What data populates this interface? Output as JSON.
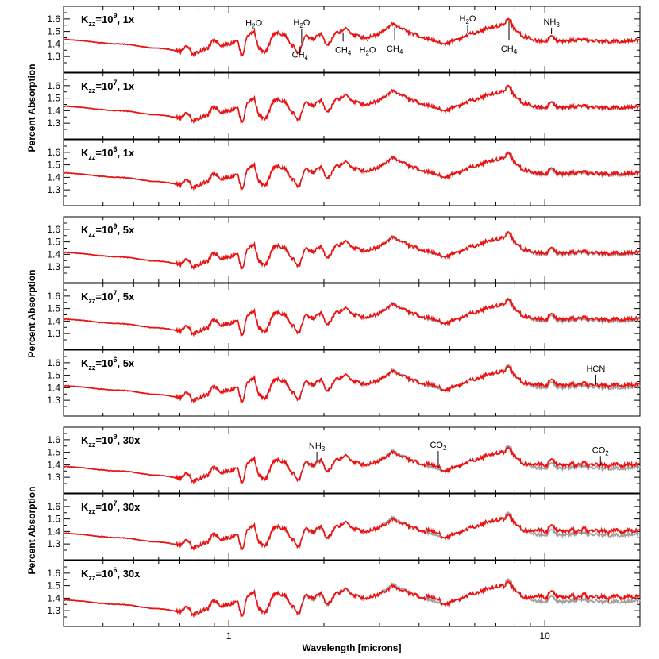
{
  "chart_data": {
    "type": "line",
    "figure": "Transmission spectra panels",
    "xlabel": "Wavelength [microns]",
    "ylabel": "Percent Absorption",
    "xscale": "log",
    "xlim": [
      0.3,
      20
    ],
    "ylim": [
      1.25,
      1.65
    ],
    "x_ticklabels": [
      {
        "value": 1,
        "label": "1"
      },
      {
        "value": 10,
        "label": "10"
      }
    ],
    "y_ticklabels": [
      {
        "value": 1.3,
        "label": "1.3"
      },
      {
        "value": 1.4,
        "label": "1.4"
      },
      {
        "value": 1.5,
        "label": "1.5"
      },
      {
        "value": 1.6,
        "label": "1.6"
      }
    ],
    "groups": [
      {
        "metallicity": "1x",
        "panels": [
          0,
          1,
          2
        ]
      },
      {
        "metallicity": "5x",
        "panels": [
          3,
          4,
          5
        ]
      },
      {
        "metallicity": "30x",
        "panels": [
          6,
          7,
          8
        ]
      }
    ],
    "colors": {
      "equilibrium": "#a0a0a0",
      "disequilibrium": "#ee1111",
      "axes": "#000000"
    },
    "panels": [
      {
        "kzz_exp": "9",
        "metallicity": "1x",
        "offset": 0.0,
        "diseq_amp": 0.0,
        "annotations": [
          {
            "text": "H",
            "sub": "2",
            "post": "O",
            "x": 1.2,
            "y": 1.545
          },
          {
            "text": "H",
            "sub": "2",
            "post": "O",
            "x": 1.7,
            "y": 1.55
          },
          {
            "text": "CH",
            "sub": "4",
            "post": "",
            "x": 1.68,
            "y": 1.29
          },
          {
            "text": "CH",
            "sub": "4",
            "post": "",
            "x": 2.3,
            "y": 1.33
          },
          {
            "text": "H",
            "sub": "2",
            "post": "O",
            "x": 2.75,
            "y": 1.33
          },
          {
            "text": "CH",
            "sub": "4",
            "post": "",
            "x": 3.35,
            "y": 1.34
          },
          {
            "text": "H",
            "sub": "2",
            "post": "O",
            "x": 5.7,
            "y": 1.58
          },
          {
            "text": "CH",
            "sub": "4",
            "post": "",
            "x": 7.7,
            "y": 1.34
          },
          {
            "text": "NH",
            "sub": "3",
            "post": "",
            "x": 10.5,
            "y": 1.555
          }
        ]
      },
      {
        "kzz_exp": "7",
        "metallicity": "1x",
        "offset": 0.0,
        "diseq_amp": 0.004,
        "annotations": []
      },
      {
        "kzz_exp": "6",
        "metallicity": "1x",
        "offset": 0.0,
        "diseq_amp": 0.008,
        "annotations": []
      },
      {
        "kzz_exp": "9",
        "metallicity": "5x",
        "offset": -0.02,
        "diseq_amp": 0.008,
        "annotations": []
      },
      {
        "kzz_exp": "7",
        "metallicity": "5x",
        "offset": -0.02,
        "diseq_amp": 0.012,
        "annotations": []
      },
      {
        "kzz_exp": "6",
        "metallicity": "5x",
        "offset": -0.02,
        "diseq_amp": 0.018,
        "annotations": [
          {
            "text": "HCN",
            "sub": "",
            "post": "",
            "x": 14.5,
            "y": 1.53
          }
        ]
      },
      {
        "kzz_exp": "9",
        "metallicity": "30x",
        "offset": -0.05,
        "diseq_amp": 0.025,
        "annotations": [
          {
            "text": "NH",
            "sub": "3",
            "post": "",
            "x": 1.9,
            "y": 1.53
          },
          {
            "text": "CO",
            "sub": "2",
            "post": "",
            "x": 4.6,
            "y": 1.535
          },
          {
            "text": "CO",
            "sub": "2",
            "post": "",
            "x": 15.0,
            "y": 1.495
          }
        ]
      },
      {
        "kzz_exp": "7",
        "metallicity": "30x",
        "offset": -0.05,
        "diseq_amp": 0.03,
        "annotations": []
      },
      {
        "kzz_exp": "6",
        "metallicity": "30x",
        "offset": -0.05,
        "diseq_amp": 0.035,
        "annotations": []
      }
    ],
    "spectrum_anchors": [
      [
        0.3,
        1.435
      ],
      [
        0.45,
        1.4
      ],
      [
        0.6,
        1.365
      ],
      [
        0.7,
        1.345
      ],
      [
        0.74,
        1.38
      ],
      [
        0.77,
        1.32
      ],
      [
        0.85,
        1.36
      ],
      [
        0.9,
        1.43
      ],
      [
        0.95,
        1.39
      ],
      [
        1.0,
        1.4
      ],
      [
        1.06,
        1.43
      ],
      [
        1.1,
        1.31
      ],
      [
        1.15,
        1.47
      ],
      [
        1.2,
        1.5
      ],
      [
        1.25,
        1.36
      ],
      [
        1.3,
        1.33
      ],
      [
        1.4,
        1.49
      ],
      [
        1.5,
        1.47
      ],
      [
        1.6,
        1.38
      ],
      [
        1.66,
        1.33
      ],
      [
        1.75,
        1.46
      ],
      [
        1.85,
        1.44
      ],
      [
        1.95,
        1.48
      ],
      [
        2.05,
        1.39
      ],
      [
        2.2,
        1.49
      ],
      [
        2.35,
        1.52
      ],
      [
        2.5,
        1.47
      ],
      [
        2.7,
        1.45
      ],
      [
        2.9,
        1.47
      ],
      [
        3.1,
        1.51
      ],
      [
        3.3,
        1.56
      ],
      [
        3.5,
        1.53
      ],
      [
        3.8,
        1.48
      ],
      [
        4.3,
        1.44
      ],
      [
        4.8,
        1.4
      ],
      [
        5.3,
        1.44
      ],
      [
        6.0,
        1.49
      ],
      [
        6.7,
        1.53
      ],
      [
        7.3,
        1.55
      ],
      [
        7.7,
        1.6
      ],
      [
        8.0,
        1.52
      ],
      [
        8.6,
        1.46
      ],
      [
        9.3,
        1.43
      ],
      [
        10.0,
        1.42
      ],
      [
        10.5,
        1.46
      ],
      [
        11.0,
        1.42
      ],
      [
        13.0,
        1.43
      ],
      [
        16.0,
        1.42
      ],
      [
        20.0,
        1.43
      ]
    ]
  }
}
